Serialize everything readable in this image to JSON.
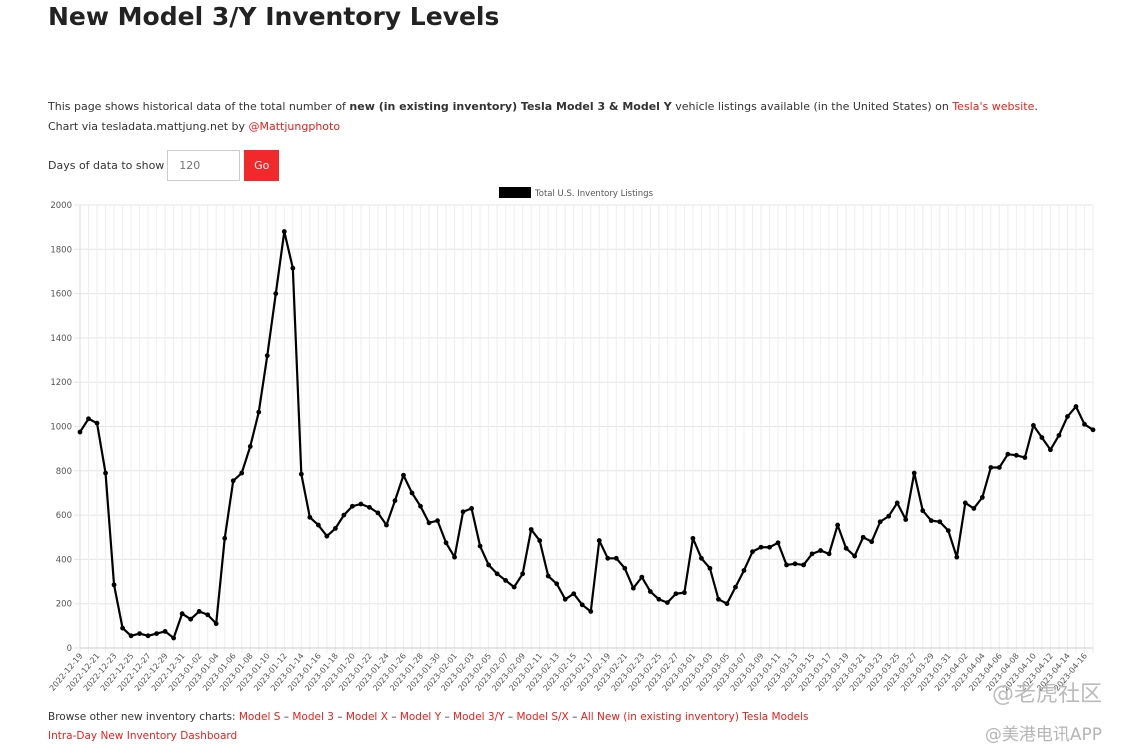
{
  "page": {
    "title": "New Model 3/Y Inventory Levels",
    "desc": {
      "pre": "This page shows historical data of the total number of ",
      "bold": "new (in existing inventory) Tesla Model 3 & Model Y",
      "mid": " vehicle listings available (in the United States) on ",
      "link": "Tesla's website",
      "end": "."
    },
    "via": {
      "pre": "Chart via tesladata.mattjung.net by ",
      "link": "@Mattjungphoto"
    },
    "days_label": "Days of data to show",
    "days_placeholder": "120",
    "go_label": "Go",
    "browse_label": "Browse other new inventory charts: ",
    "sep": " – ",
    "links": [
      "Model S",
      "Model 3",
      "Model X",
      "Model Y",
      "Model 3/Y",
      "Model S/X",
      "All New (in existing inventory) Tesla Models"
    ],
    "dashboard_link": "Intra-Day New Inventory Dashboard",
    "watermark1": "@老虎社区",
    "watermark2": "@美港电讯APP"
  },
  "chart_data": {
    "type": "line",
    "legend": "Total U.S. Inventory Listings",
    "legend_position": "top",
    "series_color": "#000000",
    "ylim": [
      0,
      2000
    ],
    "yticks": [
      0,
      200,
      400,
      600,
      800,
      1000,
      1200,
      1400,
      1600,
      1800,
      2000
    ],
    "grid": true,
    "xtick_labels": [
      "2022-12-19",
      "2022-12-21",
      "2022-12-23",
      "2022-12-25",
      "2022-12-27",
      "2022-12-29",
      "2022-12-31",
      "2023-01-02",
      "2023-01-04",
      "2023-01-06",
      "2023-01-08",
      "2023-01-10",
      "2023-01-12",
      "2023-01-14",
      "2023-01-16",
      "2023-01-18",
      "2023-01-20",
      "2023-01-22",
      "2023-01-24",
      "2023-01-26",
      "2023-01-28",
      "2023-01-30",
      "2023-02-01",
      "2023-02-03",
      "2023-02-05",
      "2023-02-07",
      "2023-02-09",
      "2023-02-11",
      "2023-02-13",
      "2023-02-15",
      "2023-02-17",
      "2023-02-19",
      "2023-02-21",
      "2023-02-23",
      "2023-02-25",
      "2023-02-27",
      "2023-03-01",
      "2023-03-03",
      "2023-03-05",
      "2023-03-07",
      "2023-03-09",
      "2023-03-11",
      "2023-03-13",
      "2023-03-15",
      "2023-03-17",
      "2023-03-19",
      "2023-03-21",
      "2023-03-23",
      "2023-03-25",
      "2023-03-27",
      "2023-03-29",
      "2023-03-31",
      "2023-04-02",
      "2023-04-04",
      "2023-04-06",
      "2023-04-08",
      "2023-04-10",
      "2023-04-12",
      "2023-04-14",
      "2023-04-16"
    ],
    "values": [
      975,
      1035,
      1015,
      790,
      285,
      90,
      55,
      65,
      55,
      65,
      75,
      45,
      155,
      130,
      165,
      150,
      110,
      495,
      755,
      790,
      910,
      1065,
      1320,
      1600,
      1880,
      1715,
      785,
      590,
      555,
      505,
      540,
      600,
      640,
      650,
      635,
      610,
      555,
      665,
      780,
      700,
      640,
      565,
      575,
      475,
      410,
      615,
      630,
      460,
      375,
      335,
      305,
      275,
      335,
      535,
      485,
      325,
      290,
      220,
      245,
      195,
      165,
      485,
      405,
      405,
      360,
      270,
      320,
      255,
      220,
      205,
      245,
      250,
      495,
      405,
      360,
      220,
      200,
      275,
      350,
      435,
      455,
      455,
      475,
      375,
      380,
      375,
      425,
      440,
      425,
      555,
      450,
      415,
      500,
      480,
      570,
      595,
      655,
      580,
      790,
      620,
      575,
      570,
      530,
      410,
      655,
      630,
      680,
      815,
      815,
      875,
      870,
      860,
      1005,
      950,
      895,
      960,
      1045,
      1090,
      1010,
      985
    ]
  }
}
